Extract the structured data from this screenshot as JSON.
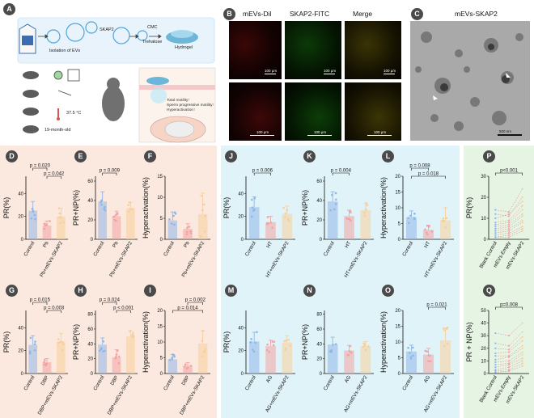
{
  "panel_labels": {
    "A": "A",
    "B": "B",
    "C": "C",
    "D": "D",
    "E": "E",
    "F": "F",
    "G": "G",
    "H": "H",
    "I": "I",
    "J": "J",
    "K": "K",
    "L": "L",
    "M": "M",
    "N": "N",
    "O": "O",
    "P": "P",
    "Q": "Q"
  },
  "schematic": {
    "isolation": "Isolation of EVs",
    "skap2": "SKAP2",
    "cmc": "CMC",
    "trehalose": "Trehalose",
    "hydrogel": "Hydrogel",
    "temp": "37.5 °C",
    "age": "19-month-old",
    "outcome1": "Total motility↑",
    "outcome2": "Sperm progressive motility↑",
    "outcome3": "Hyperactivation↑"
  },
  "micro": {
    "titles": [
      "mEVs-Dil",
      "SKAP2-FITC",
      "Merge",
      "mEVs-SKAP2"
    ],
    "scale_um": "100 μm",
    "scale_nm": "500 nm"
  },
  "chart_data": [
    {
      "id": "D",
      "type": "bar",
      "ylabel": "PR(%)",
      "categories": [
        "Control",
        "Pb",
        "Pb+mEVs-SKAP2"
      ],
      "values": [
        25,
        12,
        20
      ],
      "errors": [
        8,
        4,
        7
      ],
      "ylim": [
        0,
        55
      ],
      "yticks": [
        0,
        20,
        40
      ],
      "colors": [
        "#8fb6e8",
        "#f3a3a3",
        "#f8cf9a"
      ],
      "brackets": [
        {
          "from": 0,
          "to": 1,
          "label": "p = 0.020"
        },
        {
          "from": 1,
          "to": 2,
          "label": "p = 0.042"
        }
      ]
    },
    {
      "id": "E",
      "type": "bar",
      "ylabel": "PR+NP(%)",
      "categories": [
        "Control",
        "Pb",
        "Pb+mEVs-SKAP2"
      ],
      "values": [
        39,
        24,
        32
      ],
      "errors": [
        10,
        5,
        6
      ],
      "ylim": [
        0,
        65
      ],
      "yticks": [
        0,
        20,
        40,
        60
      ],
      "colors": [
        "#8fb6e8",
        "#f3a3a3",
        "#f8cf9a"
      ],
      "brackets": [
        {
          "from": 0,
          "to": 1,
          "label": "p = 0.009"
        }
      ]
    },
    {
      "id": "F",
      "type": "bar",
      "ylabel": "Hyperactivation(%)",
      "categories": [
        "Control",
        "Pb",
        "Pb+mEVs-SKAP2"
      ],
      "values": [
        4.5,
        2.5,
        6
      ],
      "errors": [
        2,
        1.2,
        5
      ],
      "ylim": [
        0,
        15
      ],
      "yticks": [
        0,
        5,
        10,
        15
      ],
      "colors": [
        "#8fb6e8",
        "#f3a3a3",
        "#f8cf9a"
      ],
      "brackets": []
    },
    {
      "id": "G",
      "type": "bar",
      "ylabel": "PR(%)",
      "categories": [
        "Control",
        "DBP",
        "DBP+mEVs-SKAP2"
      ],
      "values": [
        25,
        10,
        28
      ],
      "errors": [
        8,
        3,
        7
      ],
      "ylim": [
        0,
        55
      ],
      "yticks": [
        0,
        20,
        40
      ],
      "colors": [
        "#8fb6e8",
        "#f3a3a3",
        "#f8cf9a"
      ],
      "brackets": [
        {
          "from": 0,
          "to": 1,
          "label": "p = 0.015"
        },
        {
          "from": 1,
          "to": 2,
          "label": "p = 0.003"
        }
      ]
    },
    {
      "id": "H",
      "type": "bar",
      "ylabel": "PR+NP(%)",
      "categories": [
        "Control",
        "DBP",
        "DBP+mEVs-SKAP2"
      ],
      "values": [
        39,
        22,
        50
      ],
      "errors": [
        9,
        10,
        8
      ],
      "ylim": [
        0,
        85
      ],
      "yticks": [
        0,
        20,
        40,
        60,
        80
      ],
      "colors": [
        "#8fb6e8",
        "#f3a3a3",
        "#f8cf9a"
      ],
      "brackets": [
        {
          "from": 0,
          "to": 1,
          "label": "p = 0.024"
        },
        {
          "from": 1,
          "to": 2,
          "label": "p < 0.001"
        }
      ]
    },
    {
      "id": "I",
      "type": "bar",
      "ylabel": "Hyperactivation(%)",
      "categories": [
        "Control",
        "DBP",
        "DBP+mEVs-SKAP2"
      ],
      "values": [
        4.5,
        2.5,
        9.5
      ],
      "errors": [
        1.5,
        1,
        4
      ],
      "ylim": [
        0,
        20
      ],
      "yticks": [
        0,
        5,
        10,
        15,
        20
      ],
      "colors": [
        "#8fb6e8",
        "#f3a3a3",
        "#f8cf9a"
      ],
      "brackets": [
        {
          "from": 1,
          "to": 2,
          "label": "p = 0.002"
        },
        {
          "from": 0,
          "to": 2,
          "label": "p = 0.014"
        }
      ]
    },
    {
      "id": "J",
      "type": "bar",
      "ylabel": "PR(%)",
      "categories": [
        "Control",
        "HT",
        "HT+mEVs-SKAP2"
      ],
      "values": [
        28,
        15,
        22
      ],
      "errors": [
        9,
        5,
        7
      ],
      "ylim": [
        0,
        55
      ],
      "yticks": [
        0,
        20,
        40
      ],
      "colors": [
        "#8fb6e8",
        "#f3a3a3",
        "#f8cf9a"
      ],
      "brackets": [
        {
          "from": 0,
          "to": 1,
          "label": "p = 0.006"
        }
      ]
    },
    {
      "id": "K",
      "type": "bar",
      "ylabel": "PR+NP(%)",
      "categories": [
        "Control",
        "HT",
        "HT+mEVs-SKAP2"
      ],
      "values": [
        39,
        24,
        30
      ],
      "errors": [
        10,
        6,
        7
      ],
      "ylim": [
        0,
        65
      ],
      "yticks": [
        0,
        20,
        40,
        60
      ],
      "colors": [
        "#8fb6e8",
        "#f3a3a3",
        "#f8cf9a"
      ],
      "brackets": [
        {
          "from": 0,
          "to": 1,
          "label": "p = 0.004"
        }
      ]
    },
    {
      "id": "L",
      "type": "bar",
      "ylabel": "Hyperactivation(%)",
      "categories": [
        "Control",
        "HT",
        "HT+mEVs-SKAP2"
      ],
      "values": [
        7,
        3,
        6
      ],
      "errors": [
        2,
        1.5,
        4
      ],
      "ylim": [
        0,
        20
      ],
      "yticks": [
        0,
        5,
        10,
        15,
        20
      ],
      "colors": [
        "#8fb6e8",
        "#f3a3a3",
        "#f8cf9a"
      ],
      "brackets": [
        {
          "from": 0,
          "to": 1,
          "label": "p = 0.008"
        },
        {
          "from": 0,
          "to": 2,
          "label": "p = 0.018"
        }
      ]
    },
    {
      "id": "M",
      "type": "bar",
      "ylabel": "PR(%)",
      "categories": [
        "Control",
        "AG",
        "AG+mEVs-SKAP2"
      ],
      "values": [
        28,
        24,
        27
      ],
      "errors": [
        8,
        5,
        6
      ],
      "ylim": [
        0,
        55
      ],
      "yticks": [
        0,
        20,
        40
      ],
      "colors": [
        "#8fb6e8",
        "#f3a3a3",
        "#f8cf9a"
      ],
      "brackets": []
    },
    {
      "id": "N",
      "type": "bar",
      "ylabel": "PR+NP(%)",
      "categories": [
        "Control",
        "AG",
        "AG+mEVs-SKAP2"
      ],
      "values": [
        39,
        31,
        37
      ],
      "errors": [
        10,
        7,
        6
      ],
      "ylim": [
        0,
        85
      ],
      "yticks": [
        0,
        20,
        40,
        60,
        80
      ],
      "colors": [
        "#8fb6e8",
        "#f3a3a3",
        "#f8cf9a"
      ],
      "brackets": []
    },
    {
      "id": "O",
      "type": "bar",
      "ylabel": "Hyperactivation(%)",
      "categories": [
        "Control",
        "AG",
        "AG+mEVs-SKAP2"
      ],
      "values": [
        7,
        6,
        10.5
      ],
      "errors": [
        2,
        2,
        4
      ],
      "ylim": [
        0,
        20
      ],
      "yticks": [
        0,
        5,
        10,
        15,
        20
      ],
      "colors": [
        "#8fb6e8",
        "#f3a3a3",
        "#f8cf9a"
      ],
      "brackets": [
        {
          "from": 1,
          "to": 2,
          "label": "p = 0.021"
        }
      ]
    },
    {
      "id": "P",
      "type": "line",
      "ylabel": "PR(%)",
      "categories": [
        "Blank Control",
        "mEVs-Empty",
        "mEVs-SKAP2"
      ],
      "ylim": [
        0,
        30
      ],
      "yticks": [
        0,
        10,
        20,
        30
      ],
      "colors": [
        "#8fb6e8",
        "#f3a3a3",
        "#f8cf9a"
      ],
      "brackets": [
        {
          "from": 0,
          "to": 2,
          "label": "p<0.001"
        }
      ],
      "series": [
        {
          "values": [
            14,
            13,
            24
          ]
        },
        {
          "values": [
            12,
            11,
            20
          ]
        },
        {
          "values": [
            10,
            12,
            18
          ]
        },
        {
          "values": [
            8,
            9,
            16
          ]
        },
        {
          "values": [
            7,
            8,
            14
          ]
        },
        {
          "values": [
            6,
            7,
            12
          ]
        },
        {
          "values": [
            5,
            6,
            11
          ]
        },
        {
          "values": [
            4,
            5,
            9
          ]
        },
        {
          "values": [
            3,
            4,
            8
          ]
        },
        {
          "values": [
            2,
            3,
            6
          ]
        },
        {
          "values": [
            1,
            2,
            5
          ]
        },
        {
          "values": [
            1,
            1,
            4
          ]
        }
      ]
    },
    {
      "id": "Q",
      "type": "line",
      "ylabel": "PR + NP(%)",
      "categories": [
        "Blank Control",
        "mEVs-Empty",
        "mEVs-SKAP2"
      ],
      "ylim": [
        0,
        50
      ],
      "yticks": [
        0,
        10,
        20,
        30,
        40,
        50
      ],
      "colors": [
        "#8fb6e8",
        "#f3a3a3",
        "#f8cf9a"
      ],
      "brackets": [
        {
          "from": 0,
          "to": 2,
          "label": "p=0.008"
        }
      ],
      "series": [
        {
          "values": [
            32,
            30,
            40
          ]
        },
        {
          "values": [
            24,
            22,
            33
          ]
        },
        {
          "values": [
            20,
            19,
            29
          ]
        },
        {
          "values": [
            16,
            17,
            26
          ]
        },
        {
          "values": [
            14,
            14,
            22
          ]
        },
        {
          "values": [
            11,
            13,
            20
          ]
        },
        {
          "values": [
            9,
            10,
            17
          ]
        },
        {
          "values": [
            7,
            8,
            15
          ]
        },
        {
          "values": [
            5,
            7,
            12
          ]
        },
        {
          "values": [
            3,
            5,
            10
          ]
        },
        {
          "values": [
            2,
            3,
            8
          ]
        },
        {
          "values": [
            1,
            2,
            6
          ]
        }
      ]
    }
  ]
}
